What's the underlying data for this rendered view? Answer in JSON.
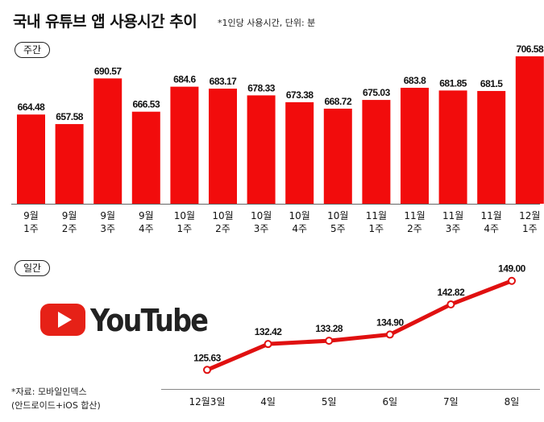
{
  "header": {
    "title": "국내 유튜브 앱 사용시간 추이",
    "note": "*1인당 사용시간, 단위: 분"
  },
  "sections": {
    "weekly_label": "주간",
    "daily_label": "일간"
  },
  "logo": {
    "word": "YouTube",
    "icon": "youtube-play-icon",
    "color": "#e62117"
  },
  "source": {
    "line1": "*자료: 모바일인덱스",
    "line2": "(안드로이드+iOS 합산)"
  },
  "colors": {
    "bar": "#f20c0c",
    "line": "#e01010"
  },
  "chart_data": [
    {
      "type": "bar",
      "categories": [
        [
          "9월",
          "1주"
        ],
        [
          "9월",
          "2주"
        ],
        [
          "9월",
          "3주"
        ],
        [
          "9월",
          "4주"
        ],
        [
          "10월",
          "1주"
        ],
        [
          "10월",
          "2주"
        ],
        [
          "10월",
          "3주"
        ],
        [
          "10월",
          "4주"
        ],
        [
          "10월",
          "5주"
        ],
        [
          "11월",
          "1주"
        ],
        [
          "11월",
          "2주"
        ],
        [
          "11월",
          "3주"
        ],
        [
          "11월",
          "4주"
        ],
        [
          "12월",
          "1주"
        ]
      ],
      "values": [
        664.48,
        657.58,
        690.57,
        666.53,
        684.6,
        683.17,
        678.33,
        673.38,
        668.72,
        675.03,
        683.8,
        681.85,
        681.5,
        706.58
      ],
      "labels": [
        "664.48",
        "657.58",
        "690.57",
        "666.53",
        "684.6",
        "683.17",
        "678.33",
        "673.38",
        "668.72",
        "675.03",
        "683.8",
        "681.85",
        "681.5",
        "706.58"
      ],
      "ylim": [
        600,
        710
      ]
    },
    {
      "type": "line",
      "x": [
        "12월3일",
        "4일",
        "5일",
        "6일",
        "7일",
        "8일"
      ],
      "values": [
        125.63,
        132.42,
        133.28,
        134.9,
        142.82,
        149.0
      ],
      "labels": [
        "125.63",
        "132.42",
        "133.28",
        "134.90",
        "142.82",
        "149.00"
      ],
      "ylim": [
        124,
        150
      ]
    }
  ]
}
